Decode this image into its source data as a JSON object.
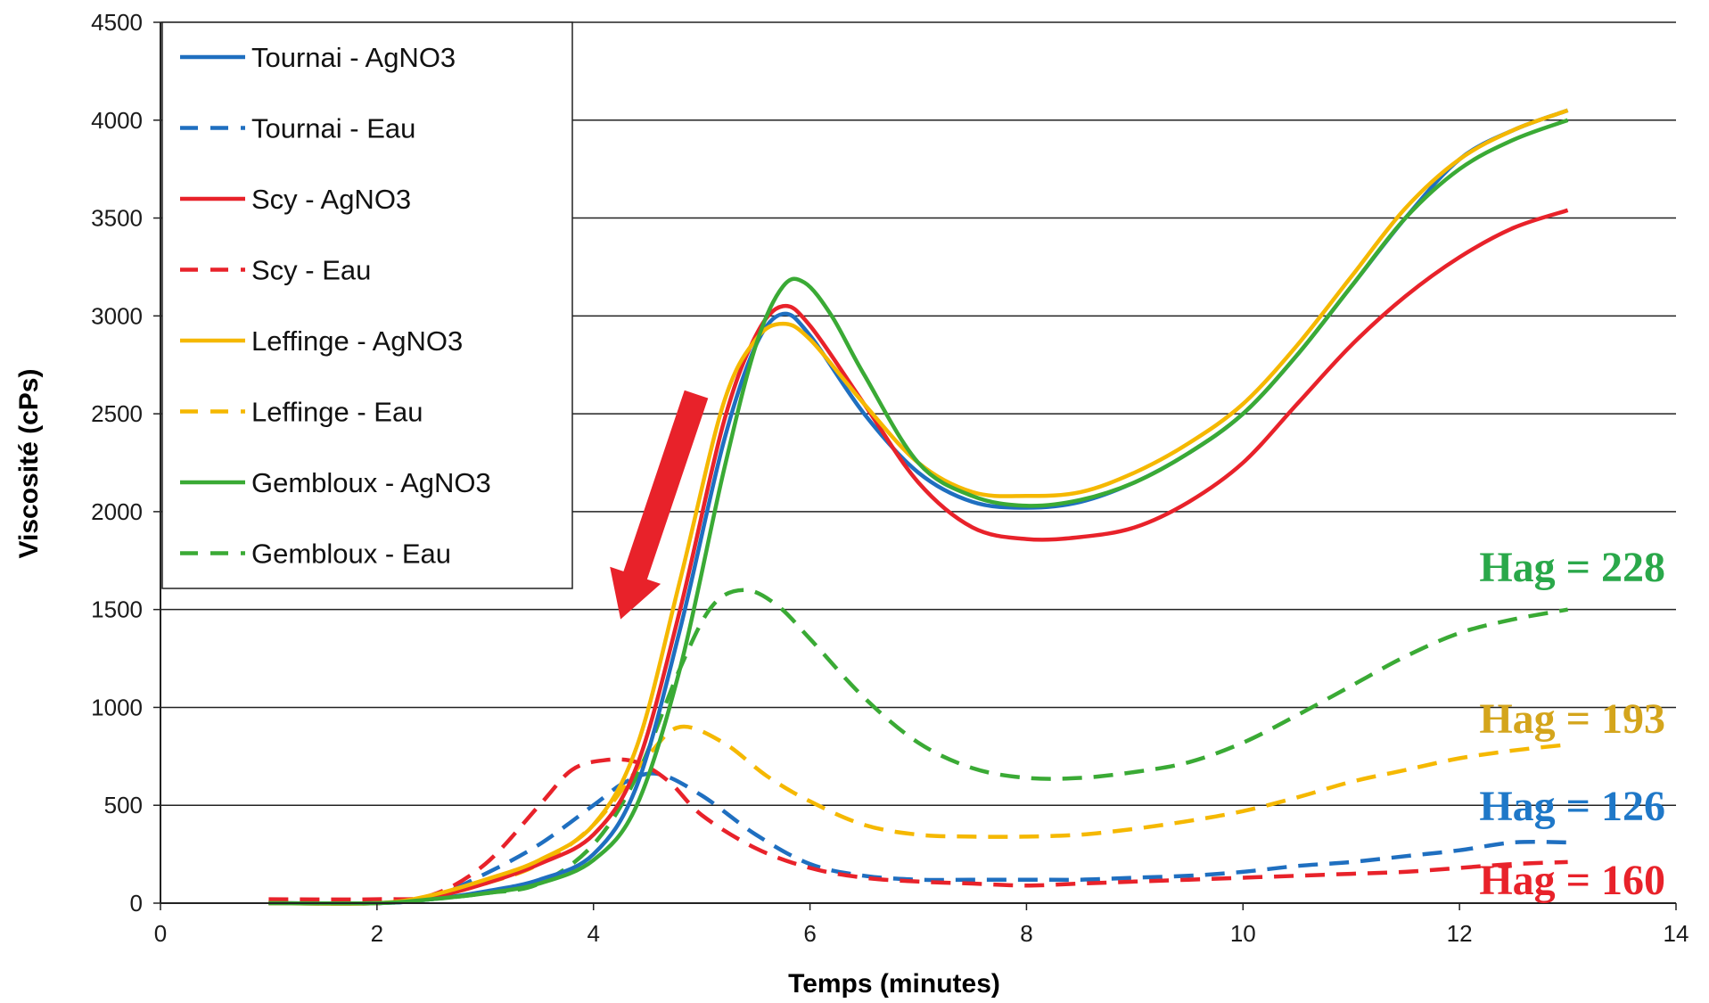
{
  "chart_data": {
    "type": "line",
    "title": "",
    "xlabel": "Temps (minutes)",
    "ylabel": "Viscosité (cPs)",
    "xlim": [
      0,
      14
    ],
    "ylim": [
      0,
      4500
    ],
    "xticks": [
      0,
      2,
      4,
      6,
      8,
      10,
      12,
      14
    ],
    "yticks": [
      0,
      500,
      1000,
      1500,
      2000,
      2500,
      3000,
      3500,
      4000,
      4500
    ],
    "grid": "horizontal",
    "legend_position": "top-left",
    "series": [
      {
        "name": "Tournai - AgNO3",
        "color": "#1f6fc0",
        "dash": "solid",
        "x": [
          1,
          2,
          2.5,
          3,
          3.5,
          4,
          4.4,
          4.8,
          5.2,
          5.5,
          5.75,
          6,
          6.5,
          7,
          7.5,
          8,
          8.5,
          9,
          9.5,
          10,
          10.5,
          11,
          11.5,
          12,
          12.5,
          13
        ],
        "y": [
          0,
          0,
          20,
          60,
          120,
          250,
          600,
          1400,
          2350,
          2850,
          3010,
          2900,
          2500,
          2200,
          2050,
          2020,
          2050,
          2150,
          2300,
          2500,
          2800,
          3150,
          3500,
          3800,
          3950,
          4050
        ]
      },
      {
        "name": "Tournai - Eau",
        "color": "#1f6fc0",
        "dash": "dashed",
        "x": [
          1,
          2,
          2.5,
          3,
          3.5,
          4,
          4.3,
          4.6,
          5,
          5.5,
          6,
          6.5,
          7,
          7.5,
          8,
          8.5,
          9,
          9.5,
          10,
          10.5,
          11,
          11.5,
          12,
          12.5,
          13
        ],
        "y": [
          0,
          0,
          30,
          150,
          300,
          500,
          620,
          660,
          550,
          350,
          200,
          140,
          120,
          120,
          120,
          120,
          130,
          140,
          160,
          190,
          210,
          240,
          270,
          310,
          310
        ]
      },
      {
        "name": "Scy - AgNO3",
        "color": "#e8222a",
        "dash": "solid",
        "x": [
          1,
          2,
          2.5,
          3,
          3.5,
          4,
          4.4,
          4.8,
          5.2,
          5.5,
          5.75,
          6,
          6.5,
          7,
          7.5,
          8,
          8.5,
          9,
          9.5,
          10,
          10.5,
          11,
          11.5,
          12,
          12.5,
          13
        ],
        "y": [
          0,
          0,
          30,
          100,
          200,
          350,
          700,
          1500,
          2450,
          2900,
          3050,
          2950,
          2550,
          2150,
          1920,
          1860,
          1870,
          1920,
          2050,
          2250,
          2550,
          2850,
          3100,
          3300,
          3450,
          3540
        ]
      },
      {
        "name": "Scy - Eau",
        "color": "#e8222a",
        "dash": "dashed",
        "x": [
          1,
          2,
          2.5,
          3,
          3.5,
          3.8,
          4.1,
          4.4,
          4.7,
          5,
          5.5,
          6,
          6.5,
          7,
          7.5,
          8,
          8.5,
          9,
          9.5,
          10,
          10.5,
          11,
          11.5,
          12,
          12.5,
          13
        ],
        "y": [
          20,
          20,
          40,
          200,
          500,
          680,
          730,
          720,
          620,
          450,
          280,
          180,
          130,
          110,
          100,
          90,
          100,
          110,
          120,
          130,
          140,
          150,
          160,
          180,
          200,
          210
        ]
      },
      {
        "name": "Leffinge - AgNO3",
        "color": "#f5b800",
        "dash": "solid",
        "x": [
          1,
          2,
          2.5,
          3,
          3.5,
          4,
          4.4,
          4.8,
          5.2,
          5.5,
          5.75,
          6,
          6.5,
          7,
          7.5,
          8,
          8.5,
          9,
          9.5,
          10,
          10.5,
          11,
          11.5,
          12,
          12.5,
          13
        ],
        "y": [
          0,
          0,
          40,
          120,
          220,
          400,
          800,
          1650,
          2550,
          2880,
          2960,
          2880,
          2550,
          2250,
          2100,
          2080,
          2100,
          2200,
          2350,
          2550,
          2850,
          3200,
          3550,
          3800,
          3950,
          4050
        ]
      },
      {
        "name": "Leffinge - Eau",
        "color": "#f5b800",
        "dash": "dashed",
        "x": [
          1,
          2,
          2.5,
          3,
          3.5,
          4,
          4.5,
          4.8,
          5.2,
          5.6,
          6,
          6.5,
          7,
          7.5,
          8,
          8.5,
          9,
          9.5,
          10,
          10.5,
          11,
          11.5,
          12,
          12.5,
          13
        ],
        "y": [
          0,
          0,
          30,
          100,
          200,
          400,
          750,
          900,
          820,
          650,
          520,
          400,
          350,
          340,
          340,
          350,
          380,
          420,
          470,
          540,
          620,
          680,
          740,
          780,
          810
        ]
      },
      {
        "name": "Gembloux - AgNO3",
        "color": "#3aaa35",
        "dash": "solid",
        "x": [
          1,
          2,
          2.5,
          3,
          3.5,
          4,
          4.4,
          4.8,
          5.2,
          5.5,
          5.75,
          5.95,
          6.2,
          6.5,
          7,
          7.5,
          8,
          8.5,
          9,
          9.5,
          10,
          10.5,
          11,
          11.5,
          12,
          12.5,
          13
        ],
        "y": [
          0,
          0,
          20,
          50,
          100,
          220,
          500,
          1200,
          2200,
          2850,
          3150,
          3170,
          3000,
          2700,
          2250,
          2080,
          2030,
          2060,
          2150,
          2300,
          2500,
          2800,
          3150,
          3500,
          3750,
          3900,
          4000
        ]
      },
      {
        "name": "Gembloux - Eau",
        "color": "#3aaa35",
        "dash": "dashed",
        "x": [
          1,
          2,
          2.5,
          3,
          3.5,
          4,
          4.4,
          4.8,
          5.1,
          5.4,
          5.7,
          6,
          6.5,
          7,
          7.5,
          8,
          8.5,
          9,
          9.5,
          10,
          10.5,
          11,
          11.5,
          12,
          12.5,
          13
        ],
        "y": [
          0,
          0,
          20,
          50,
          100,
          300,
          650,
          1200,
          1520,
          1600,
          1520,
          1350,
          1050,
          820,
          690,
          640,
          640,
          670,
          720,
          820,
          960,
          1110,
          1260,
          1380,
          1450,
          1500
        ]
      }
    ],
    "annotations": [
      {
        "text": "Hag = 228",
        "color": "#2aa84a"
      },
      {
        "text": "Hag = 193",
        "color": "#d4a51c"
      },
      {
        "text": "Hag = 126",
        "color": "#1f78c8"
      },
      {
        "text": "Hag = 160",
        "color": "#e8222a"
      }
    ],
    "arrow": {
      "color": "#e8222a",
      "from": [
        4.95,
        2600
      ],
      "to": [
        4.25,
        1450
      ]
    }
  }
}
